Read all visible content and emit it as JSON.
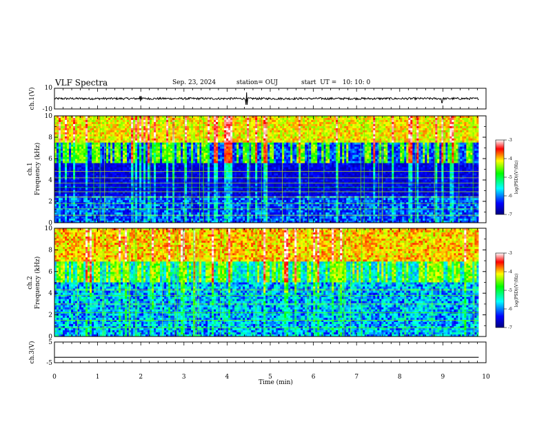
{
  "header": {
    "title": "VLF Spectra",
    "date": "Sep. 23, 2024",
    "station": "station= OUJ",
    "start": "start  UT =   10: 10: 0"
  },
  "chart_data": [
    {
      "type": "line",
      "panel": "ch1-waveform",
      "ylabel": "ch.1(V)",
      "ylim": [
        -10,
        10
      ],
      "yticks": [
        "10",
        "-10"
      ],
      "xlim": [
        0,
        10
      ],
      "series": [
        {
          "description_values": "noisy waveform around 0 V, amplitude about ±1 V with spikes near 2, 4.3–4.5 and 9 min",
          "baseline": 0,
          "amplitude": 1
        }
      ],
      "color": "#000000"
    },
    {
      "type": "heatmap",
      "panel": "ch1-spectrogram",
      "ylabel_top": "ch.1",
      "ylabel": "Frequency (kHz)",
      "ylim": [
        0,
        10
      ],
      "yticks": [
        "0",
        "2",
        "4",
        "6",
        "8",
        "10"
      ],
      "xlim": [
        0,
        9.83
      ],
      "colorbar": {
        "label": "log(PSD)(V²/Hz)",
        "range": [
          -7,
          -3
        ],
        "ticks": [
          "-3",
          "-4",
          "-5",
          "-6",
          "-7"
        ]
      }
    },
    {
      "type": "heatmap",
      "panel": "ch2-spectrogram",
      "ylabel_top": "ch.2",
      "ylabel": "Frequency (kHz)",
      "ylim": [
        0,
        10
      ],
      "yticks": [
        "0",
        "2",
        "4",
        "6",
        "8",
        "10"
      ],
      "xlim": [
        0,
        9.83
      ],
      "colorbar": {
        "label": "log(PSD)(V²/Hz)",
        "range": [
          -7,
          -3
        ],
        "ticks": [
          "-3",
          "-4",
          "-5",
          "-6",
          "-7"
        ]
      }
    },
    {
      "type": "line",
      "panel": "ch3-waveform",
      "ylabel": "ch.3(V)",
      "ylim": [
        -5,
        5
      ],
      "yticks": [
        "5",
        "-5"
      ],
      "xlim": [
        0,
        10
      ],
      "series": [
        {
          "values_constant": -2.4
        }
      ],
      "color": "#000000"
    }
  ],
  "x_axis": {
    "label": "Time (min)",
    "range": [
      0,
      10
    ],
    "ticks": [
      "0",
      "1",
      "2",
      "3",
      "4",
      "5",
      "6",
      "7",
      "8",
      "9",
      "10"
    ]
  },
  "colors": {
    "colormap": [
      "#00007f",
      "#0000ff",
      "#00ffff",
      "#00ff00",
      "#ffff00",
      "#ff0000",
      "#ffffff"
    ]
  }
}
